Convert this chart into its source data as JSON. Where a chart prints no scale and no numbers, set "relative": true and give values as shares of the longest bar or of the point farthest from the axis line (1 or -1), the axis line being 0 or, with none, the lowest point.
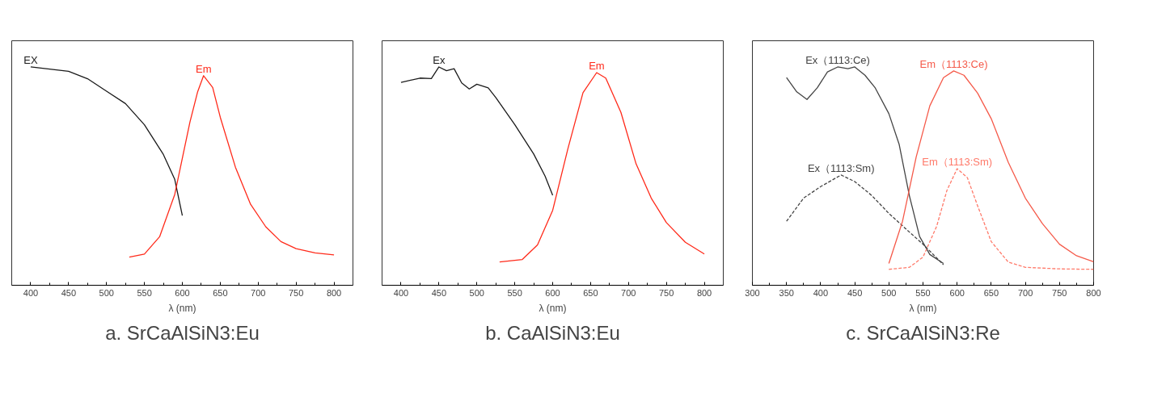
{
  "chart_data": [
    {
      "type": "line",
      "title": "a. SrCaAlSiN3:Eu",
      "xlabel": "λ (nm)",
      "relative": true,
      "tick_labels": "x",
      "xlim": [
        375,
        825
      ],
      "xticks": [
        400,
        450,
        500,
        550,
        600,
        650,
        700,
        750,
        800
      ],
      "series": [
        {
          "name": "EX",
          "color": "#1a1a1a",
          "x": [
            400,
            450,
            475,
            500,
            525,
            550,
            575,
            590,
            600
          ],
          "values": [
            1.0,
            0.98,
            0.946,
            0.889,
            0.832,
            0.735,
            0.599,
            0.485,
            0.319
          ]
        },
        {
          "name": "Em",
          "color": "#ff2a1a",
          "x": [
            530,
            550,
            570,
            590,
            610,
            620,
            628,
            640,
            650,
            670,
            690,
            710,
            730,
            750,
            775,
            800
          ],
          "values": [
            0.129,
            0.143,
            0.222,
            0.416,
            0.747,
            0.884,
            0.96,
            0.906,
            0.77,
            0.541,
            0.371,
            0.268,
            0.2,
            0.168,
            0.148,
            0.139
          ]
        }
      ]
    },
    {
      "type": "line",
      "title": "b. CaAlSiN3:Eu",
      "xlabel": "λ (nm)",
      "relative": true,
      "tick_labels": "x",
      "xlim": [
        375,
        825
      ],
      "xticks": [
        400,
        450,
        500,
        550,
        600,
        650,
        700,
        750,
        800
      ],
      "series": [
        {
          "name": "Ex",
          "color": "#1a1a1a",
          "x": [
            400,
            425,
            440,
            450,
            460,
            470,
            480,
            490,
            500,
            515,
            525,
            550,
            575,
            590,
            600
          ],
          "values": [
            0.929,
            0.949,
            0.947,
            1.0,
            0.983,
            0.992,
            0.927,
            0.899,
            0.921,
            0.904,
            0.86,
            0.736,
            0.601,
            0.5,
            0.412
          ]
        },
        {
          "name": "Em",
          "color": "#ff2a1a",
          "x": [
            530,
            560,
            580,
            600,
            620,
            640,
            658,
            670,
            690,
            710,
            730,
            750,
            775,
            800
          ],
          "values": [
            0.107,
            0.118,
            0.185,
            0.343,
            0.624,
            0.882,
            0.974,
            0.949,
            0.792,
            0.556,
            0.399,
            0.287,
            0.197,
            0.143
          ]
        }
      ]
    },
    {
      "type": "line",
      "title": "c. SrCaAlSiN3:Re",
      "xlabel": "λ (nm)",
      "relative": true,
      "tick_labels": "x",
      "xlim": [
        300,
        800
      ],
      "xticks": [
        300,
        350,
        400,
        450,
        500,
        550,
        600,
        650,
        700,
        750,
        800
      ],
      "series": [
        {
          "name": "Ex（1113:Ce)",
          "color": "#444444",
          "line_style": "solid",
          "x": [
            350,
            365,
            380,
            395,
            410,
            425,
            440,
            450,
            465,
            480,
            500,
            515,
            530,
            545,
            560,
            580
          ],
          "values": [
            0.951,
            0.886,
            0.851,
            0.904,
            0.977,
            1.0,
            0.992,
            1.0,
            0.962,
            0.904,
            0.786,
            0.646,
            0.411,
            0.223,
            0.141,
            0.1
          ]
        },
        {
          "name": "Ex（1113:Sm)",
          "color": "#444444",
          "line_style": "dashed",
          "x": [
            350,
            375,
            400,
            430,
            450,
            475,
            500,
            525,
            550,
            580
          ],
          "values": [
            0.293,
            0.399,
            0.452,
            0.505,
            0.475,
            0.411,
            0.329,
            0.258,
            0.188,
            0.094
          ]
        },
        {
          "name": "Em（1113:Ce)",
          "color": "#f55a4a",
          "line_style": "solid",
          "x": [
            500,
            520,
            540,
            560,
            580,
            595,
            610,
            630,
            650,
            675,
            700,
            725,
            750,
            775,
            800
          ],
          "values": [
            0.1,
            0.293,
            0.587,
            0.822,
            0.951,
            0.982,
            0.962,
            0.88,
            0.763,
            0.563,
            0.399,
            0.282,
            0.188,
            0.135,
            0.108
          ]
        },
        {
          "name": "Em（1113:Sm)",
          "color": "#ff7a6a",
          "line_style": "dashed",
          "x": [
            500,
            530,
            550,
            570,
            585,
            600,
            615,
            630,
            650,
            675,
            700,
            750,
            800
          ],
          "values": [
            0.073,
            0.082,
            0.129,
            0.27,
            0.434,
            0.534,
            0.493,
            0.364,
            0.2,
            0.106,
            0.082,
            0.075,
            0.073
          ]
        }
      ]
    }
  ]
}
